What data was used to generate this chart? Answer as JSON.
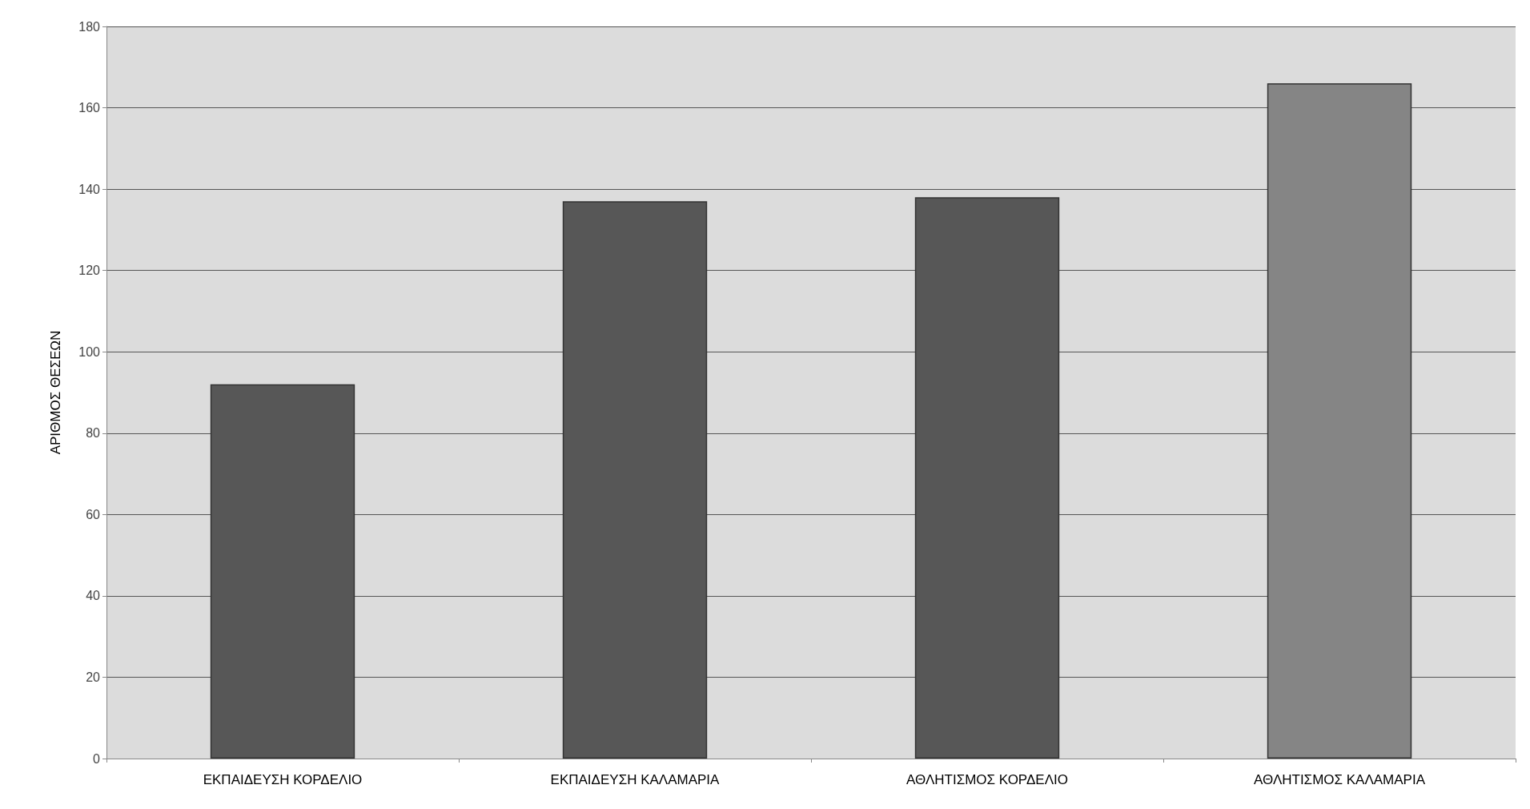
{
  "chart_data": {
    "type": "bar",
    "ylabel": "ΑΡΙΘΜΟΣ ΘΕΣΕΩΝ",
    "categories": [
      "ΕΚΠΑΙΔΕΥΣΗ ΚΟΡΔΕΛΙΟ",
      "ΕΚΠΑΙΔΕΥΣΗ ΚΑΛΑΜΑΡΙΑ",
      "ΑΘΛΗΤΙΣΜΟΣ ΚΟΡΔΕΛΙΟ",
      "ΑΘΛΗΤΙΣΜΟΣ ΚΑΛΑΜΑΡΙΑ"
    ],
    "values": [
      92,
      137,
      138,
      166
    ],
    "colors": [
      "#575757",
      "#575757",
      "#575757",
      "#858585"
    ],
    "ylim": [
      0,
      180
    ],
    "yticks": [
      0,
      20,
      40,
      60,
      80,
      100,
      120,
      140,
      160,
      180
    ],
    "grid": "y"
  }
}
